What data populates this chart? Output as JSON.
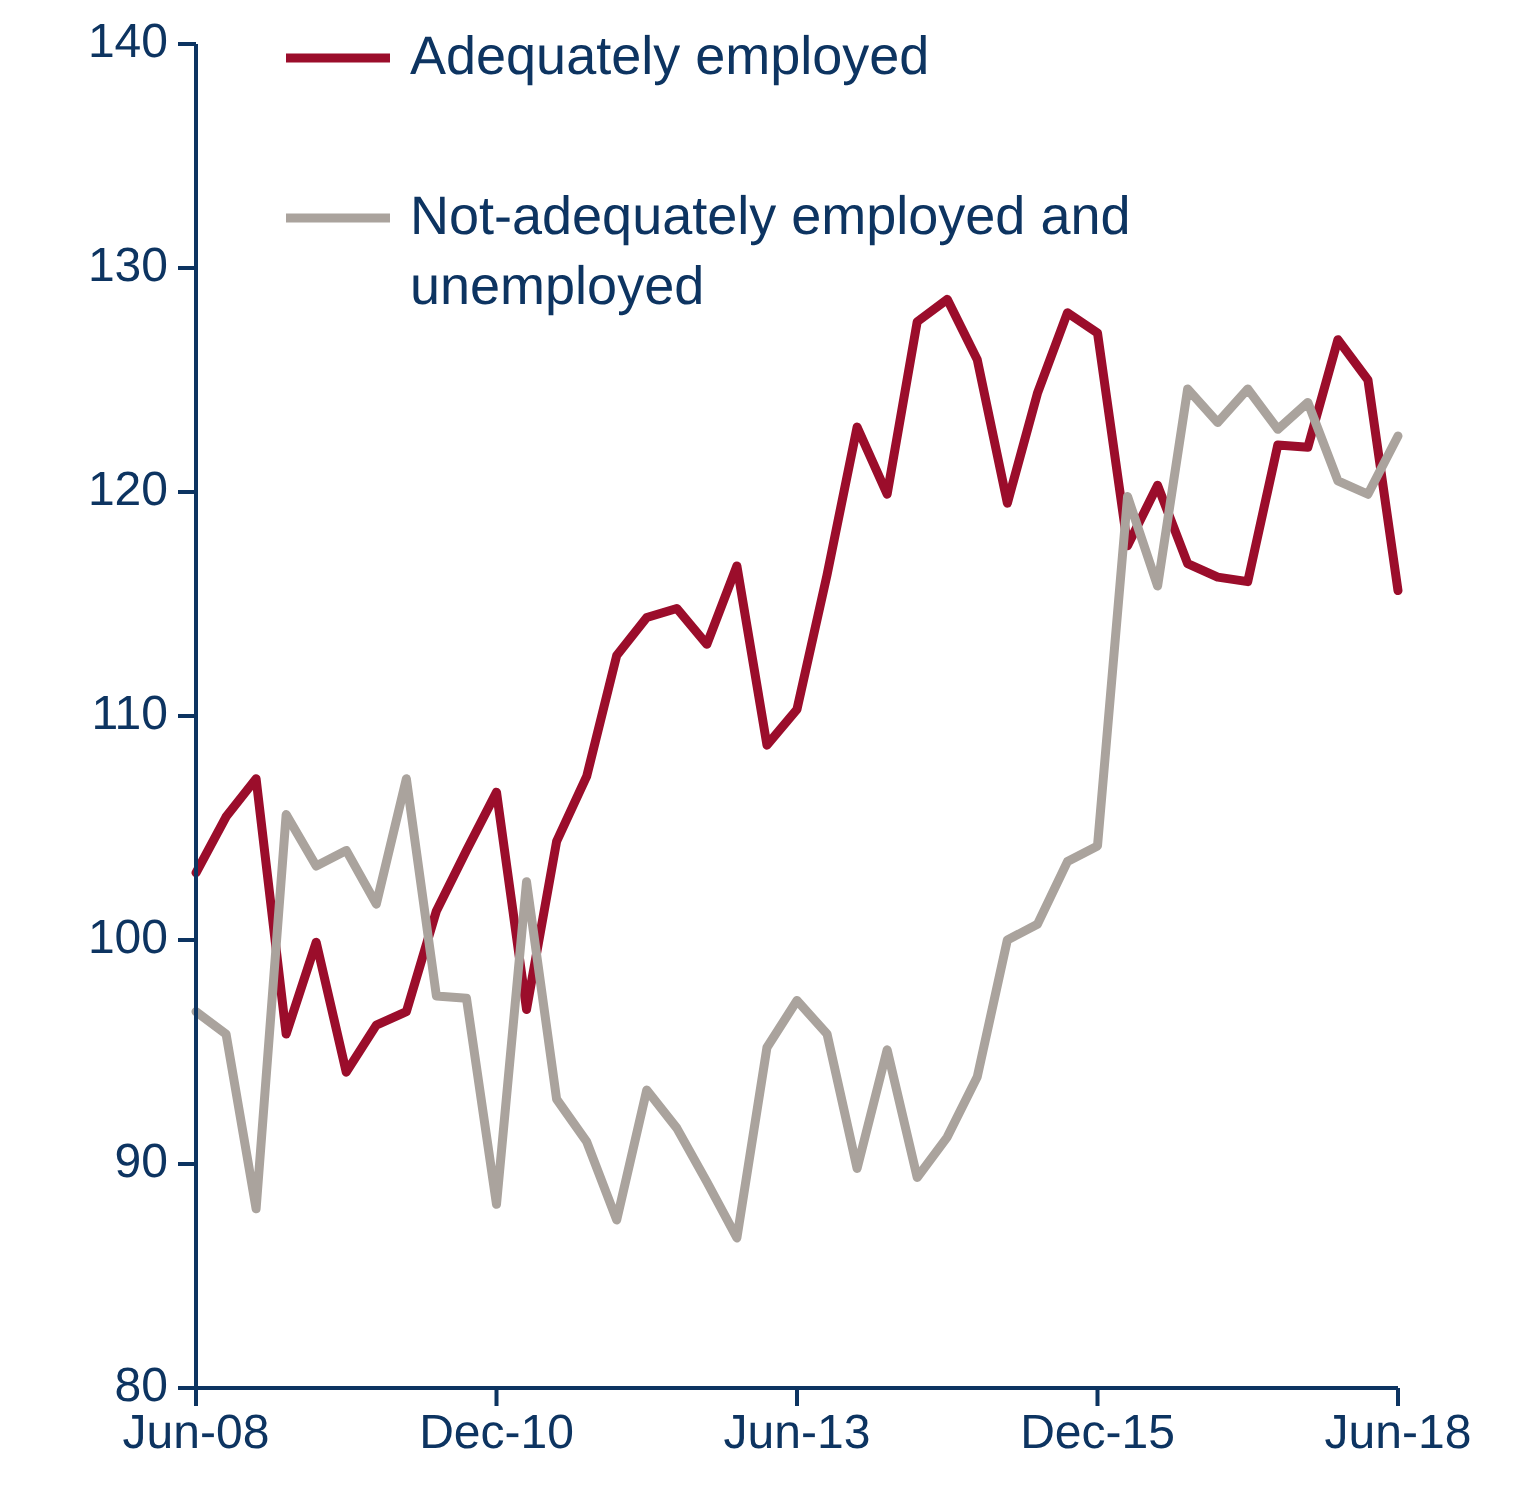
{
  "chart_data": {
    "type": "line",
    "categories": [
      "Jun-08",
      null,
      null,
      null,
      null,
      null,
      null,
      null,
      null,
      null,
      "Dec-10",
      null,
      null,
      null,
      null,
      null,
      null,
      null,
      null,
      null,
      "Jun-13",
      null,
      null,
      null,
      null,
      null,
      null,
      null,
      null,
      null,
      "Dec-15",
      null,
      null,
      null,
      null,
      null,
      null,
      null,
      null,
      null,
      "Jun-18"
    ],
    "series": [
      {
        "name": "Adequately employed",
        "color": "#9b0d2b",
        "values": [
          103.0,
          105.5,
          107.2,
          95.8,
          99.9,
          94.1,
          96.2,
          96.8,
          101.3,
          104.0,
          106.6,
          96.9,
          104.4,
          107.3,
          112.7,
          114.4,
          114.8,
          113.2,
          116.7,
          108.7,
          110.3,
          116.3,
          122.9,
          119.9,
          127.6,
          128.6,
          125.9,
          119.5,
          124.4,
          128.0,
          127.1,
          117.6,
          120.3,
          116.8,
          116.2,
          116.0,
          122.1,
          122.0,
          126.8,
          125.0,
          115.6
        ]
      },
      {
        "name": "Not-adequately employed and unemployed",
        "color": "#aaa39d",
        "values": [
          96.8,
          95.8,
          88.0,
          105.6,
          103.3,
          104.0,
          101.6,
          107.2,
          97.5,
          97.4,
          88.2,
          102.6,
          92.9,
          91.0,
          87.5,
          93.3,
          91.6,
          89.2,
          86.7,
          95.2,
          97.3,
          95.8,
          89.8,
          95.1,
          89.4,
          91.2,
          93.9,
          100.0,
          100.7,
          103.5,
          104.2,
          119.8,
          115.8,
          124.6,
          123.1,
          124.6,
          122.8,
          124.0,
          120.5,
          119.9,
          122.5
        ]
      }
    ],
    "ylim": [
      80,
      140
    ],
    "yticks": [
      80,
      90,
      100,
      110,
      120,
      130,
      140
    ],
    "legend": "top",
    "grid": false,
    "marker": "none",
    "line_style": "solid"
  }
}
